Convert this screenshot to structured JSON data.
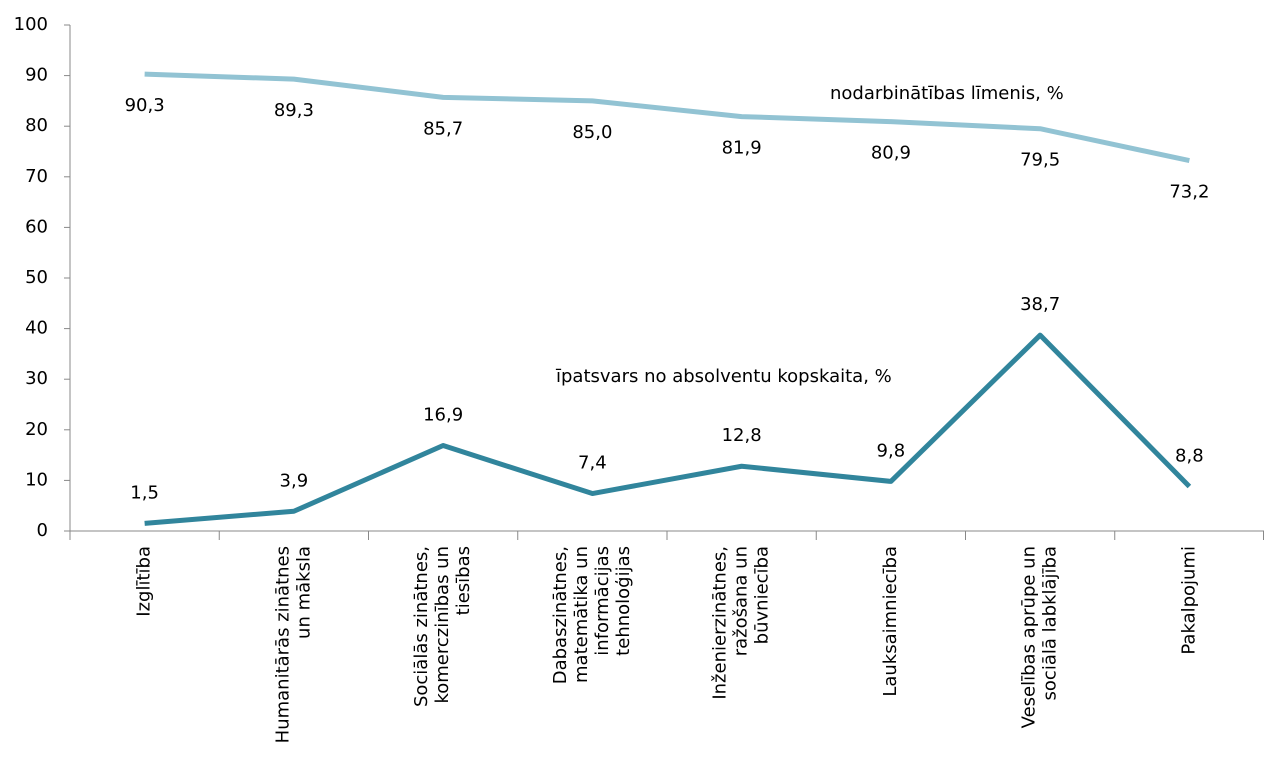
{
  "chart_data": {
    "type": "line",
    "categories": [
      "Izglītība",
      "Humanitārās zinātnes un māksla",
      "Sociālās zinātnes, komerczinības un tiesības",
      "Dabaszinātnes, matemātika un informācijas tehnoloģijas",
      "Inženierzinātnes, ražošana un būvniecība",
      "Lauksaimniecība",
      "Veselības aprūpe un sociālā labklājība",
      "Pakalpojumi"
    ],
    "series": [
      {
        "name": "nodarbinātības līmenis, %",
        "color": "#92c3d3",
        "values": [
          90.3,
          89.3,
          85.7,
          85.0,
          81.9,
          80.9,
          79.5,
          73.2
        ],
        "value_labels": [
          "90,3",
          "89,3",
          "85,7",
          "85,0",
          "81,9",
          "80,9",
          "79,5",
          "73,2"
        ]
      },
      {
        "name": "īpatsvars no absolventu kopskaita, %",
        "color": "#31859c",
        "values": [
          1.5,
          3.9,
          16.9,
          7.4,
          12.8,
          9.8,
          38.7,
          8.8
        ],
        "value_labels": [
          "1,5",
          "3,9",
          "16,9",
          "7,4",
          "12,8",
          "9,8",
          "38,7",
          "8,8"
        ]
      }
    ],
    "ylim": [
      0,
      100
    ],
    "yticks": [
      0,
      10,
      20,
      30,
      40,
      50,
      60,
      70,
      80,
      90,
      100
    ],
    "grid": false
  }
}
